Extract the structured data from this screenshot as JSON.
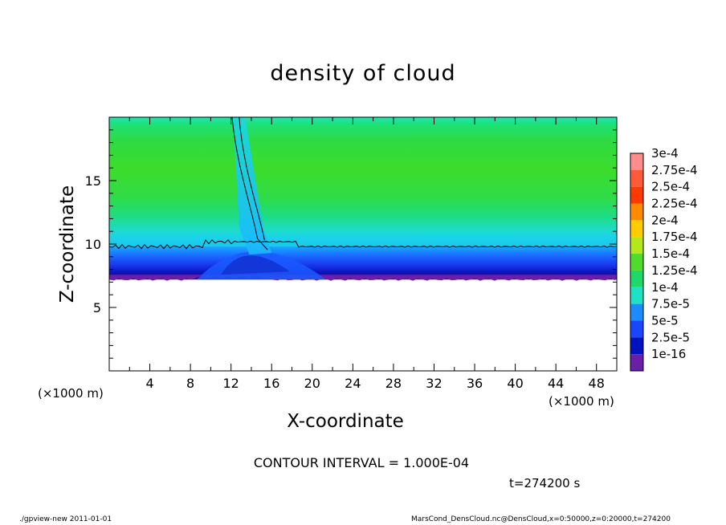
{
  "chart_data": {
    "type": "heatmap",
    "title": "density of cloud",
    "xlabel": "X-coordinate",
    "ylabel": "Z-coordinate",
    "x_unit_label": "(×1000 m)",
    "xlim": [
      0,
      50
    ],
    "ylim": [
      0,
      20
    ],
    "x_ticks": [
      4,
      8,
      12,
      16,
      20,
      24,
      28,
      32,
      36,
      40,
      44,
      48
    ],
    "y_ticks": [
      5,
      10,
      15
    ],
    "colorbar": {
      "labels": [
        "3e-4",
        "2.75e-4",
        "2.5e-4",
        "2.25e-4",
        "2e-4",
        "1.75e-4",
        "1.5e-4",
        "1.25e-4",
        "1e-4",
        "7.5e-5",
        "5e-5",
        "2.5e-5",
        "1e-16"
      ],
      "colors": [
        "#ff8d8d",
        "#ff5a3a",
        "#ff3a00",
        "#ff8a00",
        "#ffcc00",
        "#b4e81a",
        "#4fdc2a",
        "#1ed868",
        "#1de3c4",
        "#1a8cff",
        "#1a46ff",
        "#0011c0",
        "#6a1fa8"
      ]
    },
    "field": {
      "cloud_base_z": 7.2,
      "contour_level_z": 9.8,
      "plume_x": [
        11,
        17
      ],
      "core_density": "1.25e-4",
      "upper_density": "1e-4"
    },
    "contour_interval": "CONTOUR INTERVAL = 1.000E-04",
    "time": "t=274200 s"
  },
  "footer": {
    "left": "./gpview-new   2011-01-01",
    "right": "MarsCond_DensCloud.nc@DensCloud,x=0:50000,z=0:20000,t=274200"
  }
}
